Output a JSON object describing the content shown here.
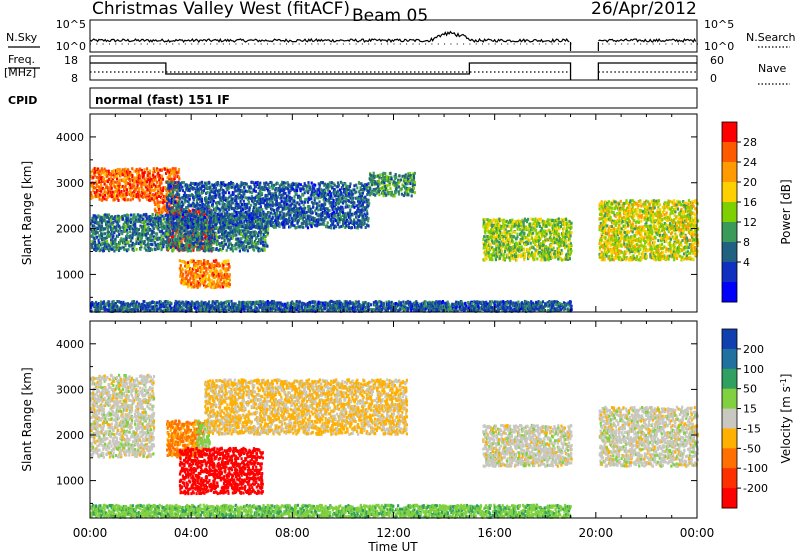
{
  "header": {
    "station": "Christmas Valley West (fitACF)",
    "beam": "Beam 05",
    "date": "26/Apr/2012"
  },
  "strips": {
    "nsky_label": "N.Sky",
    "nsearch_label": "N.Search",
    "sky_ticks": [
      "10^5",
      "10^0"
    ],
    "freq_label": "Freq.",
    "freq_unit": "[MHz]",
    "freq_ticks": [
      "18",
      "8"
    ],
    "nave_label": "Nave",
    "nave_ticks": [
      "60",
      "0"
    ],
    "cpid_label": "CPID",
    "cpid_value": "normal (fast) 151 IF"
  },
  "chart_data": [
    {
      "type": "heatmap",
      "panel": "power",
      "ylabel": "Slant Range [km]",
      "xlabel": "",
      "y_ticks": [
        1000,
        2000,
        3000,
        4000
      ],
      "ylim": [
        180,
        4500
      ],
      "xlim_hours": [
        0,
        24
      ],
      "data_gap_hours": [
        19.0,
        20.1
      ],
      "colorbar": {
        "label": "Power [dB]",
        "ticks": [
          "28",
          "24",
          "20",
          "16",
          "12",
          "8",
          "4"
        ],
        "colors": [
          "#ff0000",
          "#ff5a00",
          "#ff9a00",
          "#ffd000",
          "#7fd000",
          "#3a9a5a",
          "#206080",
          "#1030c0",
          "#0000ff"
        ]
      },
      "echo_regions": [
        {
          "t": [
            0.0,
            2.5
          ],
          "range": [
            2600,
            3300
          ],
          "power": 24
        },
        {
          "t": [
            2.5,
            3.5
          ],
          "range": [
            2300,
            3300
          ],
          "power": 24
        },
        {
          "t": [
            3.0,
            4.8
          ],
          "range": [
            1500,
            2400
          ],
          "power": 28
        },
        {
          "t": [
            3.5,
            5.5
          ],
          "range": [
            700,
            1300
          ],
          "power": 22
        },
        {
          "t": [
            0.0,
            7.0
          ],
          "range": [
            1500,
            2300
          ],
          "power": 8
        },
        {
          "t": [
            3.0,
            11.0
          ],
          "range": [
            2000,
            3000
          ],
          "power": 6
        },
        {
          "t": [
            11.0,
            12.8
          ],
          "range": [
            2700,
            3200
          ],
          "power": 10
        },
        {
          "t": [
            15.5,
            19.0
          ],
          "range": [
            1300,
            2200
          ],
          "power": 14
        },
        {
          "t": [
            20.1,
            24.0
          ],
          "range": [
            1300,
            2600
          ],
          "power": 16
        },
        {
          "t": [
            0.0,
            19.0
          ],
          "range": [
            180,
            400
          ],
          "power": 6
        }
      ]
    },
    {
      "type": "heatmap",
      "panel": "velocity",
      "ylabel": "Slant Range [km]",
      "xlabel": "Time UT",
      "y_ticks": [
        1000,
        2000,
        3000,
        4000
      ],
      "ylim": [
        180,
        4500
      ],
      "xlim_hours": [
        0,
        24
      ],
      "x_tick_labels": [
        "00:00",
        "04:00",
        "08:00",
        "12:00",
        "16:00",
        "20:00",
        "00:00"
      ],
      "data_gap_hours": [
        19.0,
        20.1
      ],
      "colorbar": {
        "label": "Velocity [m s^-1]",
        "ticks": [
          "200",
          "100",
          "50",
          "15",
          "-15",
          "-50",
          "-100",
          "-200"
        ],
        "colors": [
          "#1040b0",
          "#2070a0",
          "#30a060",
          "#80d040",
          "#c8c8c0",
          "#ffb000",
          "#ff7000",
          "#ff3000",
          "#ff0000"
        ]
      },
      "echo_regions": [
        {
          "t": [
            0.0,
            2.5
          ],
          "range": [
            1500,
            3300
          ],
          "velocity": 0
        },
        {
          "t": [
            3.0,
            4.5
          ],
          "range": [
            1500,
            2300
          ],
          "velocity": -60
        },
        {
          "t": [
            4.2,
            4.7
          ],
          "range": [
            1700,
            2300
          ],
          "velocity": 30
        },
        {
          "t": [
            3.5,
            6.8
          ],
          "range": [
            700,
            1700
          ],
          "velocity": -220
        },
        {
          "t": [
            4.5,
            12.5
          ],
          "range": [
            2000,
            3200
          ],
          "velocity": -20
        },
        {
          "t": [
            15.5,
            19.0
          ],
          "range": [
            1300,
            2200
          ],
          "velocity": 0
        },
        {
          "t": [
            20.1,
            24.0
          ],
          "range": [
            1300,
            2600
          ],
          "velocity": 0
        },
        {
          "t": [
            0.0,
            19.0
          ],
          "range": [
            180,
            450
          ],
          "velocity": 40
        }
      ]
    }
  ]
}
